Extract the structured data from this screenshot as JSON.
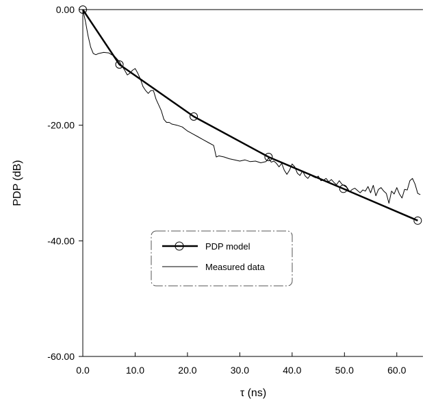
{
  "chart_data": {
    "type": "line",
    "xlabel": "τ (ns)",
    "ylabel": "PDP (dB)",
    "xlim": [
      0,
      65
    ],
    "ylim": [
      -60,
      0
    ],
    "x_ticks": [
      "0.0",
      "10.0",
      "20.0",
      "30.0",
      "40.0",
      "50.0",
      "60.0"
    ],
    "x_tick_values": [
      0,
      10,
      20,
      30,
      40,
      50,
      60
    ],
    "y_ticks": [
      "0.00",
      "-20.00",
      "-40.00",
      "-60.00"
    ],
    "y_tick_values": [
      0,
      -20,
      -40,
      -60
    ],
    "grid": false,
    "legend_position": "center",
    "series": [
      {
        "name": "PDP model",
        "style": "thick line with circle markers",
        "color": "#000000",
        "x": [
          0,
          7,
          21.2,
          35.5,
          49.8,
          64
        ],
        "y": [
          0,
          -9.5,
          -18.5,
          -25.5,
          -31,
          -36.5
        ]
      },
      {
        "name": "Measured data",
        "style": "thin line",
        "color": "#000000",
        "x": [
          0,
          0.5,
          1,
          1.5,
          2,
          2.5,
          3,
          4,
          5,
          5.5,
          6,
          7,
          7.5,
          8,
          8.5,
          9,
          9.5,
          10,
          10.5,
          11,
          11.5,
          12,
          12.5,
          13,
          13.5,
          14,
          14.5,
          15,
          15.5,
          16,
          16.5,
          17,
          18,
          19,
          20,
          21,
          22,
          23,
          24,
          25,
          25.5,
          26,
          27,
          28,
          29,
          30,
          31,
          32,
          33,
          34,
          35,
          35.5,
          36,
          36.5,
          37,
          37.5,
          38,
          38.5,
          39,
          39.5,
          40,
          40.5,
          41,
          41.5,
          42,
          42.5,
          43,
          43.5,
          44,
          44.5,
          45,
          45.5,
          46,
          46.5,
          47,
          47.5,
          48,
          48.5,
          49,
          49.5,
          50,
          50.5,
          51,
          51.5,
          52,
          52.5,
          53,
          53.5,
          54,
          54.5,
          55,
          55.5,
          56,
          56.5,
          57,
          57.5,
          58,
          58.5,
          59,
          59.5,
          60,
          60.5,
          61,
          61.5,
          62,
          62.5,
          63,
          63.5,
          64,
          64.5
        ],
        "y": [
          0,
          -2,
          -4.5,
          -6.5,
          -7.6,
          -7.8,
          -7.6,
          -7.4,
          -7.5,
          -7.8,
          -8,
          -9,
          -9.8,
          -10.5,
          -11.3,
          -11,
          -10.5,
          -10.2,
          -11,
          -12,
          -13.3,
          -14,
          -14.5,
          -14,
          -14,
          -15.5,
          -16.5,
          -17.5,
          -19,
          -19.5,
          -19.5,
          -19.8,
          -20,
          -20.3,
          -21,
          -21.5,
          -22,
          -22.5,
          -23,
          -23.5,
          -25.5,
          -25.3,
          -25.5,
          -25.8,
          -26,
          -26.2,
          -26,
          -26.3,
          -26.2,
          -26.5,
          -26.3,
          -25.7,
          -26.4,
          -26.2,
          -26.6,
          -27.2,
          -26.6,
          -27.8,
          -28.5,
          -27.8,
          -26.7,
          -27.2,
          -28.3,
          -28.7,
          -27.9,
          -28.8,
          -29.2,
          -28.6,
          -28.9,
          -29.1,
          -28.8,
          -29.6,
          -29.5,
          -29.2,
          -29.8,
          -29.4,
          -29.9,
          -30.3,
          -29.6,
          -30.2,
          -30.5,
          -30.8,
          -31.5,
          -31.1,
          -30.9,
          -31.3,
          -31.7,
          -31.2,
          -31.4,
          -30.6,
          -31.7,
          -30.4,
          -32.2,
          -31.1,
          -30.8,
          -31.4,
          -31.8,
          -33.5,
          -31.4,
          -31.9,
          -30.8,
          -31.9,
          -32.6,
          -31.1,
          -31.2,
          -29.6,
          -29.2,
          -30.2,
          -31.8,
          -32
        ]
      }
    ]
  }
}
